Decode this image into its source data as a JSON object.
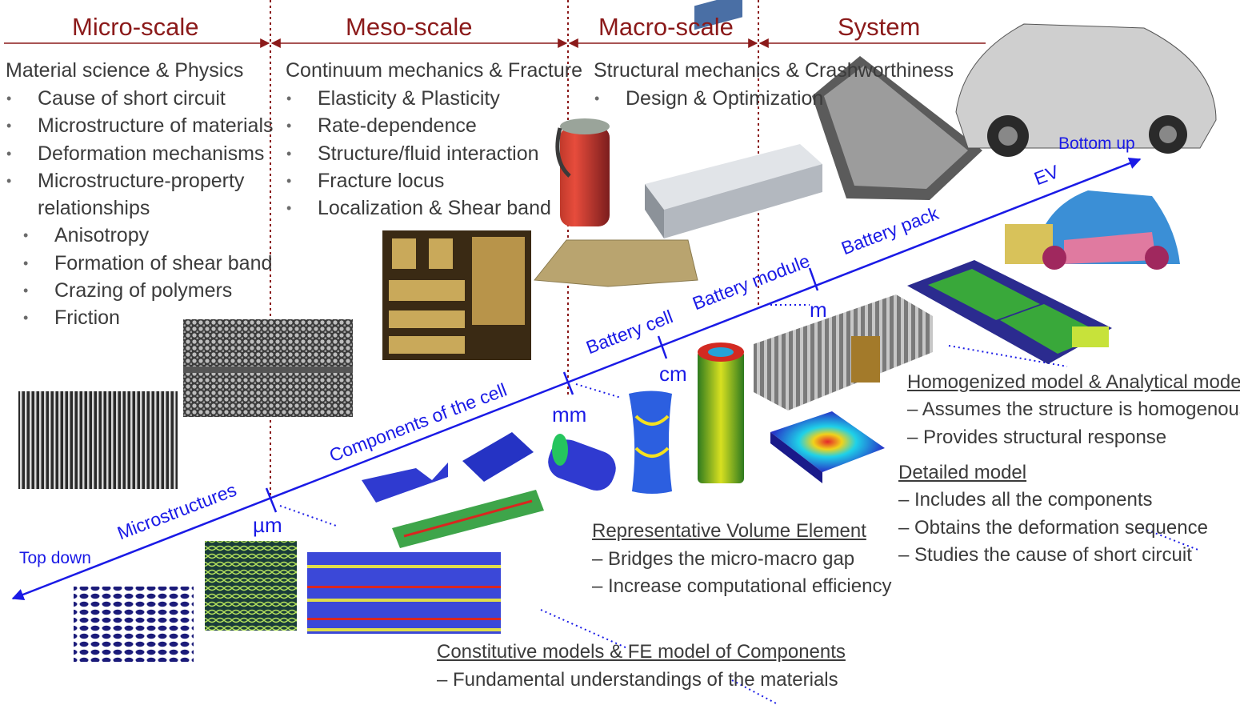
{
  "headers": [
    "Micro-scale",
    "Meso-scale",
    "Macro-scale",
    "System"
  ],
  "micro": {
    "title": "Material science & Physics",
    "items": [
      "Cause of short circuit",
      "Microstructure of materials",
      "Deformation mechanisms",
      "Microstructure-property",
      "relationships"
    ],
    "subitems": [
      "Anisotropy",
      "Formation of shear band",
      "Crazing of polymers",
      "Friction"
    ]
  },
  "meso": {
    "title": "Continuum mechanics & Fracture",
    "items": [
      "Elasticity & Plasticity",
      "Rate-dependence",
      "Structure/fluid interaction",
      "Fracture locus",
      "Localization & Shear band"
    ]
  },
  "macro": {
    "title": "Structural mechanics & Crashworthiness",
    "items": [
      "Design & Optimization"
    ]
  },
  "axis": {
    "bottom_up": "Bottom up",
    "top_down": "Top down",
    "levels": [
      "Microstructures",
      "Components of the cell",
      "Battery cell",
      "Battery module",
      "Battery pack",
      "EV"
    ],
    "units": [
      "µm",
      "mm",
      "cm",
      "m"
    ]
  },
  "blocks": {
    "homogenized": {
      "title": "Homogenized model & Analytical model",
      "lines": [
        "– Assumes the structure is homogenous",
        "– Provides structural response"
      ]
    },
    "detailed": {
      "title": "Detailed model",
      "lines": [
        "– Includes all the components",
        "– Obtains the deformation sequence",
        "– Studies the cause of short circuit"
      ]
    },
    "rve": {
      "title": "Representative Volume Element",
      "lines": [
        "– Bridges the micro-macro gap",
        "– Increase computational efficiency"
      ]
    },
    "constitutive": {
      "title": "Constitutive models & FE model of Components",
      "lines": [
        "– Fundamental understandings of the materials"
      ]
    }
  },
  "colors": {
    "header": "#8b1a1a",
    "axis": "#1a1ae6",
    "text": "#3b3b3b"
  }
}
